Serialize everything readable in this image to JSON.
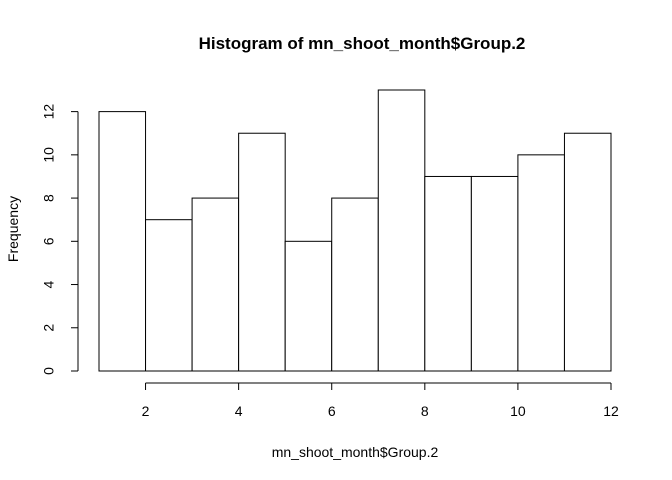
{
  "chart_data": {
    "type": "bar",
    "title": "Histogram of mn_shoot_month$Group.2",
    "xlabel": "mn_shoot_month$Group.2",
    "ylabel": "Frequency",
    "bins": [
      {
        "start": 1,
        "end": 2,
        "count": 12
      },
      {
        "start": 2,
        "end": 3,
        "count": 7
      },
      {
        "start": 3,
        "end": 4,
        "count": 8
      },
      {
        "start": 4,
        "end": 5,
        "count": 11
      },
      {
        "start": 5,
        "end": 6,
        "count": 6
      },
      {
        "start": 6,
        "end": 7,
        "count": 8
      },
      {
        "start": 7,
        "end": 8,
        "count": 13
      },
      {
        "start": 8,
        "end": 9,
        "count": 9
      },
      {
        "start": 9,
        "end": 10,
        "count": 9
      },
      {
        "start": 10,
        "end": 11,
        "count": 10
      },
      {
        "start": 11,
        "end": 12,
        "count": 11
      }
    ],
    "xlim": [
      1,
      12
    ],
    "ylim": [
      0,
      13
    ],
    "x_ticks": [
      2,
      4,
      6,
      8,
      10,
      12
    ],
    "y_ticks": [
      0,
      2,
      4,
      6,
      8,
      10,
      12
    ],
    "colors": {
      "bar_fill": "#ffffff",
      "bar_stroke": "#000000"
    }
  }
}
